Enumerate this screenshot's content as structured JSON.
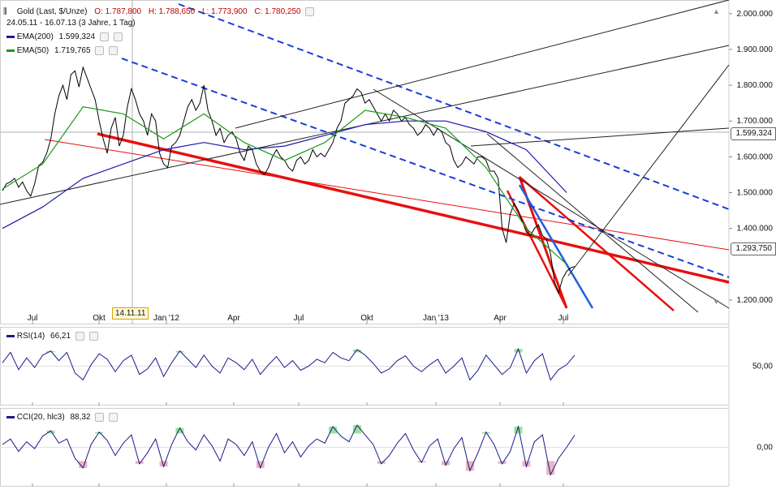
{
  "header": {
    "instrument": "Gold (Last, $/Unze)",
    "open": "O: 1.787,800",
    "high": "H: 1.788,650",
    "low": "L: 1.773,900",
    "close": "C: 1.780,250",
    "range": "24.05.11 - 16.07.13 (3 Jahre, 1 Tag)"
  },
  "indicators": {
    "ema200": {
      "label": "EMA(200)",
      "value": "1.599,324",
      "color": "#1a1aa8"
    },
    "ema50": {
      "label": "EMA(50)",
      "value": "1.719,765",
      "color": "#1a9a1a"
    },
    "rsi": {
      "label": "RSI(14)",
      "value": "66,21",
      "color": "#1a1a8c"
    },
    "cci": {
      "label": "CCI(20, hlc3)",
      "value": "88,32",
      "color": "#1a1a8c"
    }
  },
  "crosshair_date": "14.11.11",
  "price_tags": {
    "ema200": "1.599,324",
    "last": "1.293,750"
  },
  "colors": {
    "price": "#000000",
    "trend_red": "#e81010",
    "trend_blue_dash": "#1a3fd6",
    "trend_blue": "#1f5fe0",
    "overbought_fill": "#7be07b",
    "oversold_fill": "#e8a0b0",
    "grid": "#d8d8d8"
  },
  "chart_data": [
    {
      "type": "line",
      "name": "price-panel",
      "y_axis_ticks": [
        "2.000.000",
        "1.900.000",
        "1.800.000",
        "1.700.000",
        "1.600.000",
        "1.500.000",
        "1.400.000",
        "1.200.000"
      ],
      "y_tick_values": [
        2000000,
        1900000,
        1800000,
        1700000,
        1600000,
        1500000,
        1400000,
        1200000
      ],
      "x_axis_ticks": [
        "Jul",
        "Okt",
        "Jan '12",
        "Apr",
        "Jul",
        "Okt",
        "Jan '13",
        "Apr",
        "Jul"
      ],
      "ylim": [
        1150000,
        2020000
      ],
      "series": [
        {
          "name": "Gold",
          "x": [
            0,
            5,
            10,
            15,
            20,
            25,
            30,
            35,
            40,
            45,
            50,
            55,
            60,
            65,
            70,
            75,
            80,
            85,
            90,
            95,
            100,
            105,
            110,
            115,
            120,
            125,
            130,
            135,
            140,
            145,
            150,
            155,
            160,
            165,
            170,
            175,
            180,
            185,
            190,
            195,
            200,
            205,
            210,
            215,
            220,
            225,
            230,
            235,
            240,
            245,
            250,
            255,
            260,
            265,
            270,
            275,
            280,
            285,
            290,
            295,
            300,
            305,
            310,
            315,
            320,
            325,
            330,
            335,
            340,
            345,
            350,
            355,
            360,
            365,
            370,
            375,
            380,
            385,
            390,
            395,
            400,
            405,
            410,
            415,
            420,
            425,
            430,
            435,
            440,
            445,
            450,
            455,
            460,
            465,
            470,
            475,
            480,
            485,
            490,
            495,
            500,
            505,
            510,
            515,
            520,
            525,
            530,
            535,
            540,
            545,
            550,
            555,
            560,
            565,
            570,
            575,
            580,
            585,
            590,
            595,
            600,
            605,
            610,
            615,
            620,
            625,
            630,
            635,
            640,
            645,
            650,
            655,
            660,
            665,
            670,
            675,
            680,
            685,
            690,
            695,
            700,
            705,
            710
          ],
          "y": [
            1505000,
            1525000,
            1530000,
            1540000,
            1515000,
            1530000,
            1505000,
            1490000,
            1525000,
            1575000,
            1585000,
            1610000,
            1650000,
            1720000,
            1770000,
            1800000,
            1760000,
            1830000,
            1840000,
            1795000,
            1850000,
            1820000,
            1790000,
            1760000,
            1700000,
            1650000,
            1610000,
            1680000,
            1710000,
            1630000,
            1660000,
            1740000,
            1790000,
            1760000,
            1720000,
            1700000,
            1660000,
            1720000,
            1700000,
            1610000,
            1580000,
            1570000,
            1630000,
            1640000,
            1660000,
            1700000,
            1740000,
            1760000,
            1730000,
            1750000,
            1800000,
            1730000,
            1700000,
            1660000,
            1680000,
            1640000,
            1660000,
            1670000,
            1650000,
            1610000,
            1590000,
            1630000,
            1620000,
            1580000,
            1560000,
            1550000,
            1570000,
            1600000,
            1620000,
            1600000,
            1590000,
            1570000,
            1560000,
            1590000,
            1600000,
            1580000,
            1590000,
            1620000,
            1600000,
            1610000,
            1600000,
            1620000,
            1640000,
            1680000,
            1700000,
            1750000,
            1760000,
            1770000,
            1790000,
            1780000,
            1750000,
            1760000,
            1740000,
            1720000,
            1700000,
            1720000,
            1700000,
            1730000,
            1720000,
            1700000,
            1710000,
            1690000,
            1680000,
            1660000,
            1670000,
            1690000,
            1680000,
            1660000,
            1680000,
            1670000,
            1640000,
            1630000,
            1590000,
            1570000,
            1580000,
            1600000,
            1590000,
            1580000,
            1600000,
            1600000,
            1590000,
            1560000,
            1560000,
            1540000,
            1400000,
            1360000,
            1440000,
            1470000,
            1450000,
            1420000,
            1390000,
            1380000,
            1400000,
            1410000,
            1380000,
            1370000,
            1330000,
            1250000,
            1220000,
            1260000,
            1280000,
            1290000,
            1293750
          ]
        },
        {
          "name": "EMA(200)",
          "x": [
            0,
            50,
            100,
            150,
            200,
            250,
            300,
            350,
            400,
            450,
            500,
            550,
            600,
            650,
            700
          ],
          "y": [
            1400000,
            1460000,
            1540000,
            1580000,
            1620000,
            1640000,
            1620000,
            1630000,
            1660000,
            1690000,
            1700000,
            1700000,
            1670000,
            1620000,
            1500000
          ]
        },
        {
          "name": "EMA(50)",
          "x": [
            0,
            50,
            100,
            150,
            200,
            250,
            300,
            350,
            400,
            450,
            500,
            550,
            600,
            650,
            700
          ],
          "y": [
            1510000,
            1580000,
            1740000,
            1720000,
            1650000,
            1720000,
            1640000,
            1590000,
            1640000,
            1730000,
            1710000,
            1680000,
            1570000,
            1400000,
            1300000
          ]
        }
      ]
    },
    {
      "type": "line",
      "name": "RSI(14)",
      "y_axis_ticks": [
        "50,00"
      ],
      "ylim": [
        0,
        100
      ],
      "series": [
        {
          "name": "RSI(14)",
          "x": [
            0,
            10,
            20,
            30,
            40,
            50,
            60,
            70,
            80,
            90,
            100,
            110,
            120,
            130,
            140,
            150,
            160,
            170,
            180,
            190,
            200,
            210,
            220,
            230,
            240,
            250,
            260,
            270,
            280,
            290,
            300,
            310,
            320,
            330,
            340,
            350,
            360,
            370,
            380,
            390,
            400,
            410,
            420,
            430,
            440,
            450,
            460,
            470,
            480,
            490,
            500,
            510,
            520,
            530,
            540,
            550,
            560,
            570,
            580,
            590,
            600,
            610,
            620,
            630,
            640,
            650,
            660,
            670,
            680,
            690,
            700,
            710
          ],
          "y": [
            55,
            70,
            45,
            62,
            48,
            66,
            72,
            58,
            70,
            40,
            30,
            52,
            68,
            60,
            42,
            58,
            66,
            38,
            46,
            62,
            35,
            55,
            72,
            60,
            48,
            66,
            50,
            40,
            62,
            55,
            45,
            60,
            38,
            52,
            64,
            48,
            58,
            44,
            50,
            60,
            55,
            70,
            62,
            58,
            74,
            66,
            54,
            40,
            46,
            58,
            65,
            50,
            42,
            52,
            60,
            40,
            50,
            62,
            30,
            44,
            66,
            52,
            38,
            48,
            75,
            40,
            58,
            68,
            30,
            45,
            52,
            66
          ]
        }
      ]
    },
    {
      "type": "line",
      "name": "CCI(20, hlc3)",
      "y_axis_ticks": [
        "0,00"
      ],
      "ylim": [
        -250,
        250
      ],
      "series": [
        {
          "name": "CCI(20, hlc3)",
          "x": [
            0,
            10,
            20,
            30,
            40,
            50,
            60,
            70,
            80,
            90,
            100,
            110,
            120,
            130,
            140,
            150,
            160,
            170,
            180,
            190,
            200,
            210,
            220,
            230,
            240,
            250,
            260,
            270,
            280,
            290,
            300,
            310,
            320,
            330,
            340,
            350,
            360,
            370,
            380,
            390,
            400,
            410,
            420,
            430,
            440,
            450,
            460,
            470,
            480,
            490,
            500,
            510,
            520,
            530,
            540,
            550,
            560,
            570,
            580,
            590,
            600,
            610,
            620,
            630,
            640,
            650,
            660,
            670,
            680,
            690,
            700,
            710
          ],
          "y": [
            20,
            60,
            -30,
            40,
            -10,
            80,
            120,
            30,
            60,
            -80,
            -150,
            20,
            110,
            50,
            -60,
            30,
            90,
            -120,
            -40,
            60,
            -140,
            20,
            140,
            40,
            -20,
            90,
            10,
            -100,
            60,
            20,
            -60,
            40,
            -150,
            0,
            100,
            -40,
            40,
            -70,
            10,
            60,
            30,
            150,
            80,
            40,
            160,
            90,
            20,
            -120,
            -60,
            30,
            100,
            -20,
            -110,
            10,
            60,
            -130,
            -10,
            70,
            -170,
            -40,
            110,
            20,
            -120,
            -30,
            150,
            -140,
            40,
            90,
            -200,
            -80,
            0,
            88
          ]
        }
      ]
    }
  ]
}
